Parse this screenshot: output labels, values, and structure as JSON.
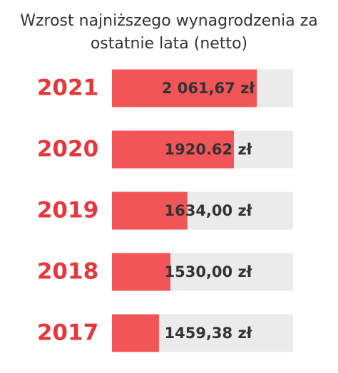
{
  "chart_data": {
    "type": "bar",
    "orientation": "horizontal",
    "title": "Wzrost najniższego wynagrodzenia za ostatnie lata (netto)",
    "categories": [
      "2021",
      "2020",
      "2019",
      "2018",
      "2017"
    ],
    "values": [
      2061.67,
      1920.62,
      1634.0,
      1530.0,
      1459.38
    ],
    "value_labels": [
      "2 061,67 zł",
      "1920.62 zł",
      "1634,00 zł",
      "1530,00 zł",
      "1459,38 zł"
    ],
    "color": "#f25557",
    "track_color": "#ebebeb",
    "category_color": "#e8373c",
    "xlim": [
      1170,
      2285
    ]
  }
}
